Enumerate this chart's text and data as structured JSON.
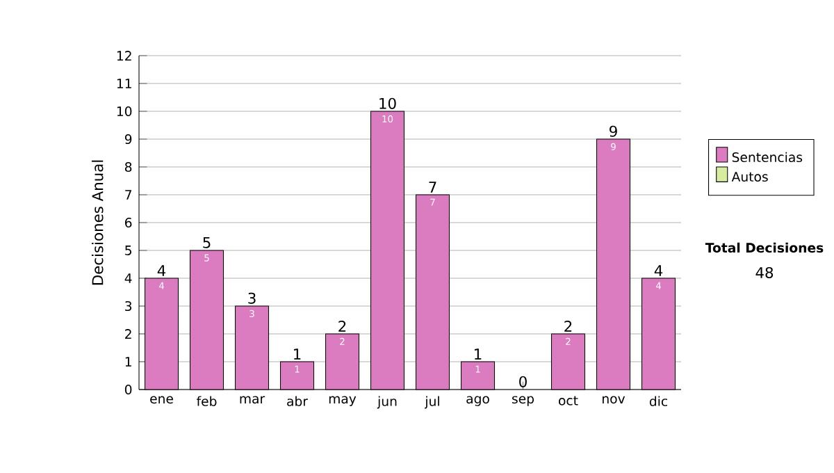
{
  "chart_data": {
    "type": "bar",
    "stacked": true,
    "categories": [
      "ene",
      "feb",
      "mar",
      "abr",
      "may",
      "jun",
      "jul",
      "ago",
      "sep",
      "oct",
      "nov",
      "dic"
    ],
    "series": [
      {
        "name": "Sentencias",
        "color": "#dc7cc0",
        "values": [
          4,
          5,
          3,
          1,
          2,
          10,
          7,
          1,
          0,
          2,
          9,
          4
        ],
        "value_labels": [
          "4",
          "5",
          "3",
          "1",
          "2",
          "10",
          "7",
          "1",
          null,
          "2",
          "9",
          "4"
        ]
      },
      {
        "name": "Autos",
        "color": "#d8eca0",
        "values": [
          0,
          0,
          0,
          0,
          0,
          0,
          0,
          0,
          0,
          0,
          0,
          0
        ]
      }
    ],
    "totals": [
      "4",
      "5",
      "3",
      "1",
      "2",
      "10",
      "7",
      "1",
      "0",
      "2",
      "9",
      "4"
    ],
    "ylabel": "Decisiones Anual",
    "ylim": [
      0,
      12
    ],
    "yticks": [
      0,
      1,
      2,
      3,
      4,
      5,
      6,
      7,
      8,
      9,
      10,
      11,
      12
    ],
    "grid": "y",
    "legend": "right",
    "annotations": [
      "Total Decisiones",
      "48"
    ]
  }
}
